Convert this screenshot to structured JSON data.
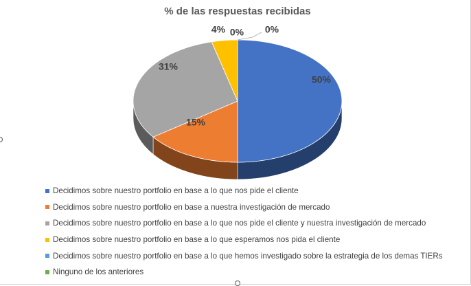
{
  "chart_data": {
    "type": "pie",
    "title": "% de las respuestas recibidas",
    "three_d": true,
    "legend_position": "bottom",
    "slices": [
      {
        "label": "Decidimos sobre nuestro portfolio en base a lo que nos pide el cliente",
        "value": 50,
        "data_label": "50%",
        "color": "#4472C4"
      },
      {
        "label": "Decidimos sobre nuestro portfolio en base a nuestra investigación de mercado",
        "value": 15,
        "data_label": "15%",
        "color": "#ED7D31"
      },
      {
        "label": "Decidimos sobre nuestro portfolio en base a lo que nos pide el cliente y nuestra investigación de mercado",
        "value": 31,
        "data_label": "31%",
        "color": "#A5A5A5"
      },
      {
        "label": "Decidimos sobre nuestro portfolio en base a lo que esperamos nos pida el cliente",
        "value": 4,
        "data_label": "4%",
        "color": "#FFC000"
      },
      {
        "label": "Decidimos sobre nuestro portfolio en base a lo que hemos investigado sobre la estrategia de los demas TIERs",
        "value": 0,
        "data_label": "0%",
        "color": "#5B9BD5"
      },
      {
        "label": "Ninguno de los anteriores",
        "value": 0,
        "data_label": "0%",
        "color": "#70AD47"
      }
    ]
  }
}
